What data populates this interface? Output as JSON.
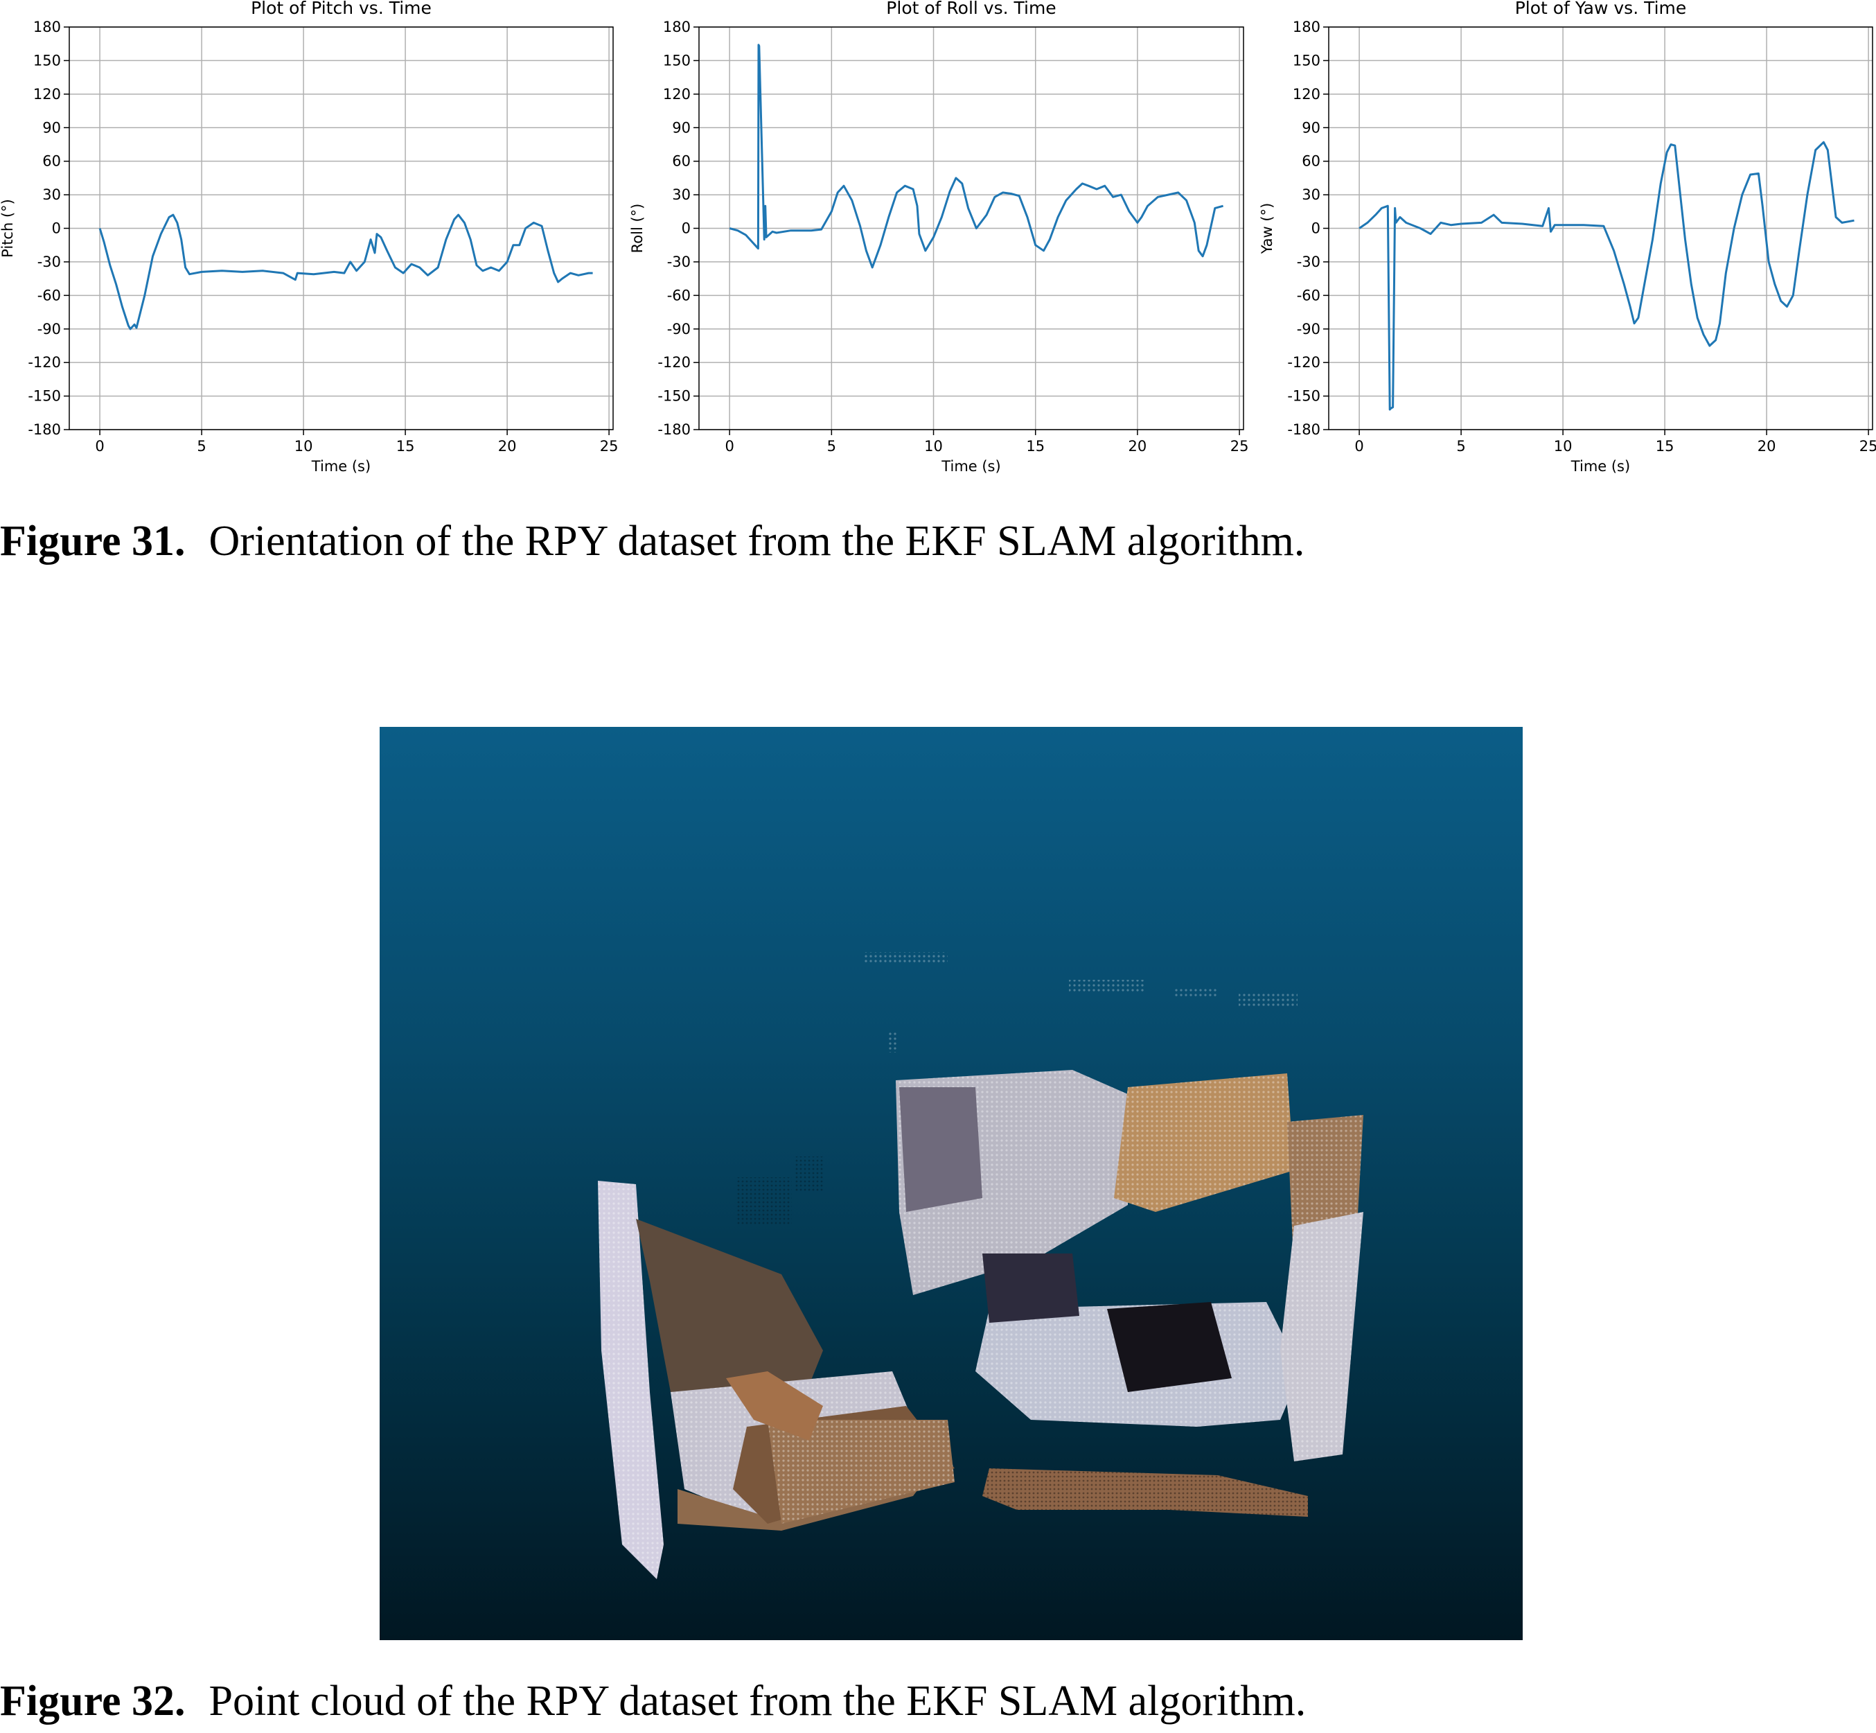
{
  "chart_data": [
    {
      "type": "line",
      "title": "Plot of Pitch vs. Time",
      "xlabel": "Time (s)",
      "ylabel": "Pitch (°)",
      "xlim": [
        -1.5,
        25.2
      ],
      "ylim": [
        -180,
        180
      ],
      "xticks": [
        0,
        5,
        10,
        15,
        20,
        25
      ],
      "yticks": [
        180,
        150,
        120,
        90,
        60,
        30,
        0,
        -30,
        -60,
        -90,
        -120,
        -150,
        -180
      ],
      "grid": true,
      "series": [
        {
          "color": "#1f77b4",
          "x": [
            0,
            0.2,
            0.5,
            0.8,
            1.1,
            1.4,
            1.5,
            1.7,
            1.8,
            2.2,
            2.6,
            3.0,
            3.4,
            3.6,
            3.8,
            4.0,
            4.2,
            4.4,
            5.0,
            6.0,
            7.0,
            8.0,
            9.0,
            9.6,
            9.7,
            10.5,
            11.5,
            12.0,
            12.3,
            12.6,
            13.0,
            13.3,
            13.5,
            13.6,
            13.8,
            14.1,
            14.5,
            14.9,
            15.3,
            15.7,
            16.1,
            16.6,
            17.0,
            17.4,
            17.6,
            17.9,
            18.2,
            18.5,
            18.8,
            19.2,
            19.6,
            20.0,
            20.3,
            20.6,
            20.9,
            21.3,
            21.7,
            22.0,
            22.3,
            22.5,
            22.7,
            23.1,
            23.5,
            24.0,
            24.2
          ],
          "y": [
            0,
            -12,
            -33,
            -50,
            -70,
            -87,
            -90,
            -86,
            -89,
            -60,
            -25,
            -5,
            10,
            12,
            5,
            -10,
            -35,
            -41,
            -39,
            -38,
            -39,
            -38,
            -40,
            -46,
            -40,
            -41,
            -39,
            -40,
            -30,
            -38,
            -30,
            -10,
            -22,
            -5,
            -8,
            -20,
            -35,
            -40,
            -32,
            -35,
            -42,
            -35,
            -10,
            8,
            12,
            5,
            -10,
            -33,
            -38,
            -35,
            -38,
            -30,
            -15,
            -15,
            0,
            5,
            2,
            -20,
            -40,
            -48,
            -45,
            -40,
            -42,
            -40,
            -40
          ]
        }
      ]
    },
    {
      "type": "line",
      "title": "Plot of Roll vs. Time",
      "xlabel": "Time (s)",
      "ylabel": "Roll (°)",
      "xlim": [
        -1.5,
        25.2
      ],
      "ylim": [
        -180,
        180
      ],
      "xticks": [
        0,
        5,
        10,
        15,
        20,
        25
      ],
      "yticks": [
        180,
        150,
        120,
        90,
        60,
        30,
        0,
        -30,
        -60,
        -90,
        -120,
        -150,
        -180
      ],
      "grid": true,
      "series": [
        {
          "color": "#1f77b4",
          "x": [
            0,
            0.4,
            0.8,
            1.1,
            1.3,
            1.4,
            1.42,
            1.45,
            1.7,
            1.75,
            1.8,
            2.1,
            2.3,
            3.0,
            4.0,
            4.5,
            5.0,
            5.3,
            5.6,
            6.0,
            6.4,
            6.7,
            7.0,
            7.4,
            7.8,
            8.2,
            8.6,
            9.0,
            9.2,
            9.3,
            9.6,
            10.0,
            10.4,
            10.8,
            11.1,
            11.4,
            11.7,
            12.1,
            12.6,
            13.0,
            13.4,
            13.8,
            14.2,
            14.6,
            15.0,
            15.4,
            15.7,
            16.1,
            16.5,
            17.0,
            17.3,
            17.6,
            18.0,
            18.4,
            18.8,
            19.2,
            19.6,
            20.0,
            20.2,
            20.5,
            21.0,
            21.5,
            22.0,
            22.4,
            22.8,
            23.0,
            23.2,
            23.4,
            23.8,
            24.2
          ],
          "y": [
            0,
            -2,
            -6,
            -12,
            -16,
            -18,
            164,
            163,
            -10,
            20,
            -8,
            -3,
            -4,
            -2,
            -2,
            -1,
            15,
            32,
            38,
            25,
            2,
            -20,
            -35,
            -15,
            10,
            32,
            38,
            35,
            20,
            -5,
            -20,
            -8,
            10,
            33,
            45,
            40,
            18,
            0,
            12,
            28,
            32,
            31,
            29,
            10,
            -15,
            -20,
            -10,
            10,
            25,
            35,
            40,
            38,
            35,
            38,
            28,
            30,
            15,
            5,
            10,
            20,
            28,
            30,
            32,
            25,
            5,
            -20,
            -25,
            -15,
            18,
            20
          ]
        }
      ]
    },
    {
      "type": "line",
      "title": "Plot of Yaw vs. Time",
      "xlabel": "Time (s)",
      "ylabel": "Yaw (°)",
      "xlim": [
        -1.5,
        25.2
      ],
      "ylim": [
        -180,
        180
      ],
      "xticks": [
        0,
        5,
        10,
        15,
        20,
        25
      ],
      "yticks": [
        180,
        150,
        120,
        90,
        60,
        30,
        0,
        -30,
        -60,
        -90,
        -120,
        -150,
        -180
      ],
      "grid": true,
      "series": [
        {
          "color": "#1f77b4",
          "x": [
            0,
            0.4,
            0.8,
            1.1,
            1.4,
            1.5,
            1.55,
            1.65,
            1.75,
            1.8,
            2.0,
            2.3,
            3.0,
            3.5,
            4.0,
            4.5,
            5.0,
            6.0,
            6.6,
            7.0,
            8.0,
            9.0,
            9.3,
            9.4,
            9.6,
            10.0,
            11.0,
            12.0,
            12.5,
            13.0,
            13.3,
            13.5,
            13.7,
            14.0,
            14.4,
            14.8,
            15.1,
            15.3,
            15.5,
            15.7,
            16.0,
            16.3,
            16.6,
            16.9,
            17.2,
            17.5,
            17.7,
            18.0,
            18.4,
            18.8,
            19.2,
            19.6,
            19.8,
            20.1,
            20.4,
            20.7,
            21.0,
            21.3,
            21.6,
            22.0,
            22.4,
            22.8,
            23.0,
            23.2,
            23.4,
            23.7,
            24.0,
            24.3
          ],
          "y": [
            0,
            5,
            12,
            18,
            20,
            -162,
            -161,
            -160,
            18,
            5,
            10,
            5,
            0,
            -5,
            5,
            3,
            4,
            5,
            12,
            5,
            4,
            2,
            18,
            -3,
            3,
            3,
            3,
            2,
            -20,
            -50,
            -70,
            -85,
            -80,
            -50,
            -10,
            40,
            68,
            75,
            74,
            40,
            -10,
            -50,
            -80,
            -95,
            -105,
            -100,
            -85,
            -40,
            0,
            30,
            48,
            49,
            20,
            -30,
            -50,
            -65,
            -70,
            -60,
            -20,
            30,
            70,
            77,
            70,
            40,
            10,
            5,
            6,
            7
          ]
        }
      ]
    }
  ],
  "figures": {
    "fig31": {
      "label": "Figure 31.",
      "text": "Orientation of the RPY dataset from the EKF SLAM algorithm."
    },
    "fig32": {
      "label": "Figure 32.",
      "text": "Point cloud of the RPY dataset from the EKF SLAM algorithm."
    }
  }
}
